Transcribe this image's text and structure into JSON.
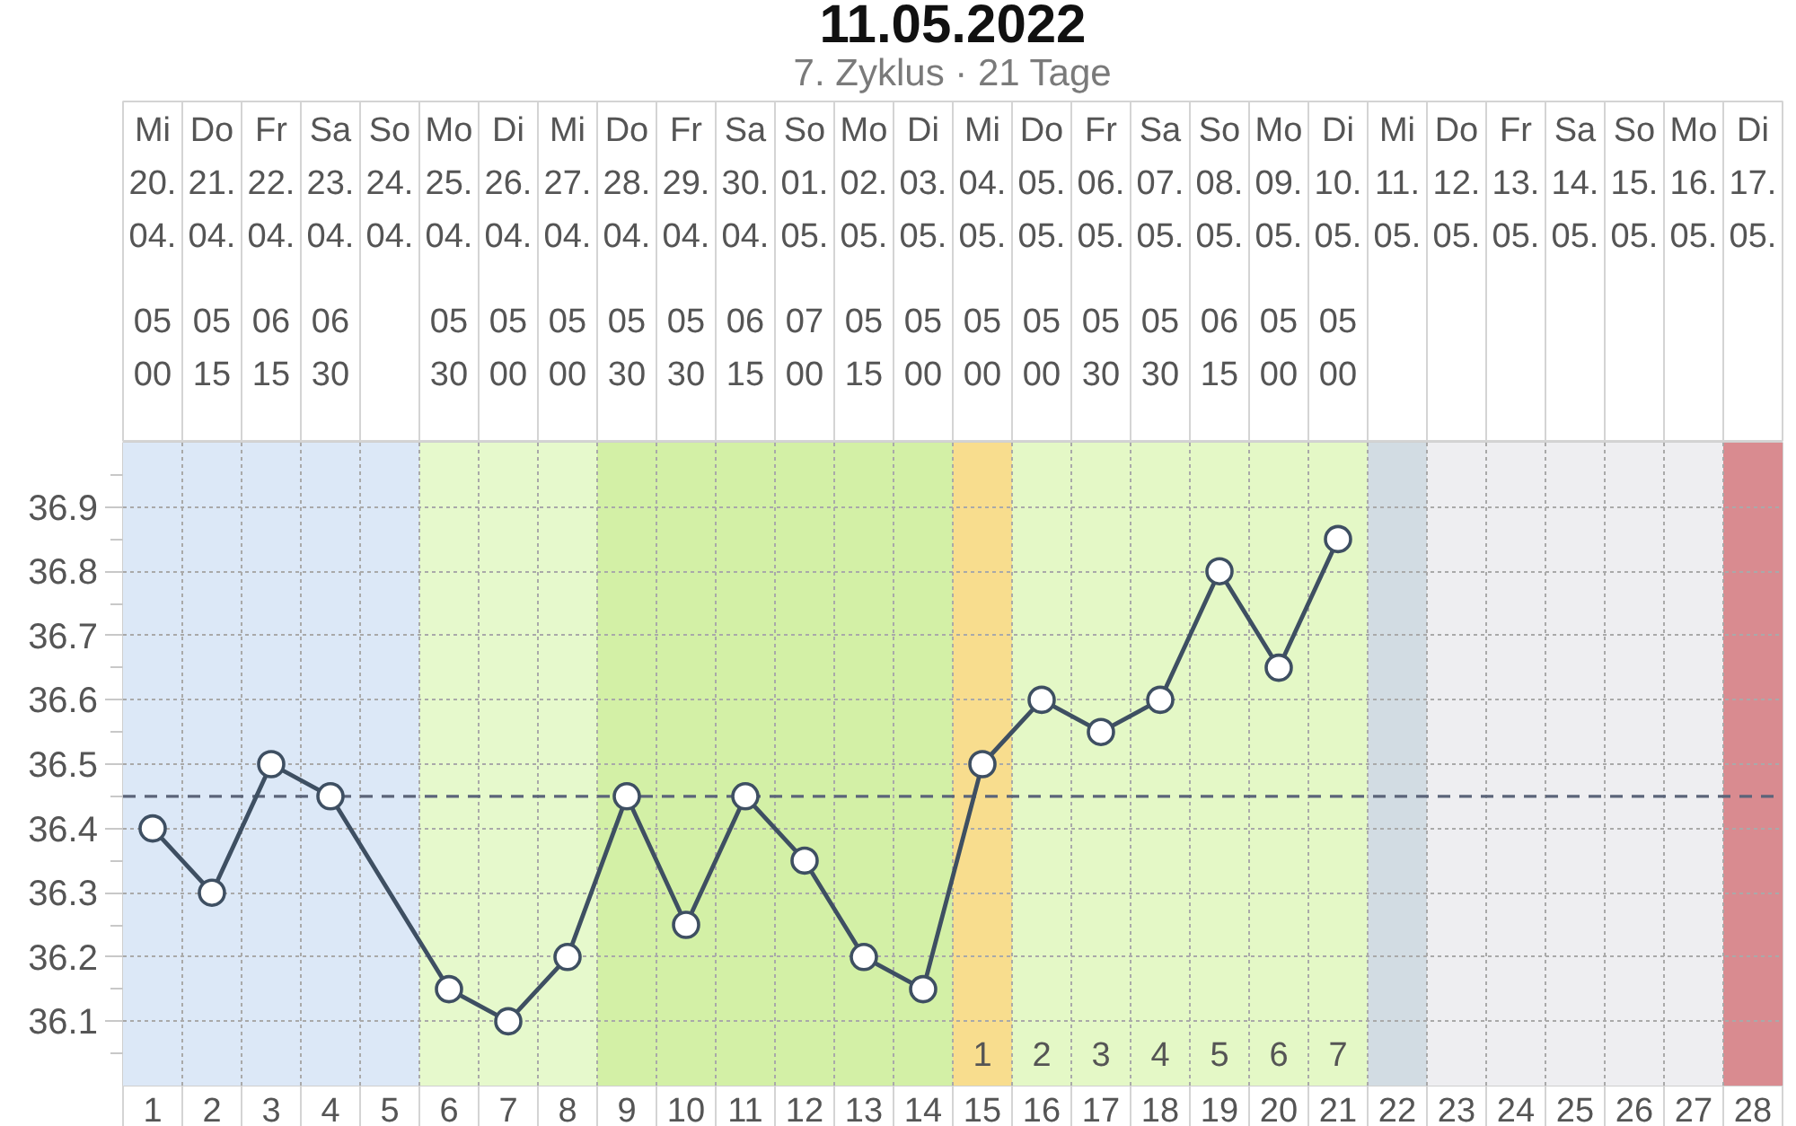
{
  "chart_data": {
    "type": "line",
    "title": "11.05.2022",
    "subtitle": "7. Zyklus · 21 Tage",
    "xlim": [
      0.5,
      28.5
    ],
    "xticks": [
      1,
      2,
      3,
      4,
      5,
      6,
      7,
      8,
      9,
      10,
      11,
      12,
      13,
      14,
      15,
      16,
      17,
      18,
      19,
      20,
      21,
      22,
      23,
      24,
      25,
      26,
      27,
      28,
      {
        "value": 0.5,
        "label": null
      },
      {
        "value": 1.5,
        "label": null
      },
      {
        "value": 2.5,
        "label": null
      },
      {
        "value": 3.5,
        "label": null
      },
      {
        "value": 4.5,
        "label": null
      },
      {
        "value": 5.5,
        "label": null
      },
      {
        "value": 6.5,
        "label": null
      },
      {
        "value": 7.5,
        "label": null
      },
      {
        "value": 8.5,
        "label": null
      },
      {
        "value": 9.5,
        "label": null
      },
      {
        "value": 10.5,
        "label": null
      },
      {
        "value": 11.5,
        "label": null
      },
      {
        "value": 12.5,
        "label": null
      },
      {
        "value": 13.5,
        "label": null
      },
      {
        "value": 14.5,
        "label": null
      },
      {
        "value": 15.5,
        "label": null
      },
      {
        "value": 16.5,
        "label": null
      },
      {
        "value": 17.5,
        "label": null
      },
      {
        "value": 18.5,
        "label": null
      },
      {
        "value": 19.5,
        "label": null
      },
      {
        "value": 20.5,
        "label": null
      },
      {
        "value": 21.5,
        "label": null
      },
      {
        "value": 22.5,
        "label": null
      },
      {
        "value": 23.5,
        "label": null
      },
      {
        "value": 24.5,
        "label": null
      },
      {
        "value": 25.5,
        "label": null
      },
      {
        "value": 26.5,
        "label": null
      },
      {
        "value": 27.5,
        "label": null
      },
      {
        "value": 28.5,
        "label": null
      }
    ],
    "x2lim": [
      "2022-04-19T12:00",
      "2022-05-17T12:00"
    ],
    "x2ticks": [
      {
        "value": "2022-04-20",
        "label": "Mi\n20.\n04."
      },
      {
        "value": "2022-04-21",
        "label": "Do\n21.\n04."
      },
      {
        "value": "2022-04-22",
        "label": "Fr\n22.\n04."
      },
      {
        "value": "2022-04-23",
        "label": "Sa\n23.\n04."
      },
      {
        "value": "2022-04-24",
        "label": "So\n24.\n04."
      },
      {
        "value": "2022-04-25",
        "label": "Mo\n25.\n04."
      },
      {
        "value": "2022-04-26",
        "label": "Di\n26.\n04."
      },
      {
        "value": "2022-04-27",
        "label": "Mi\n27.\n04."
      },
      {
        "value": "2022-04-28",
        "label": "Do\n28.\n04."
      },
      {
        "value": "2022-04-29",
        "label": "Fr\n29.\n04."
      },
      {
        "value": "2022-04-30",
        "label": "Sa\n30.\n04."
      },
      {
        "value": "2022-05-01",
        "label": "So\n01.\n05."
      },
      {
        "value": "2022-05-02",
        "label": "Mo\n02.\n05."
      },
      {
        "value": "2022-05-03",
        "label": "Di\n03.\n05."
      },
      {
        "value": "2022-05-04",
        "label": "Mi\n04.\n05."
      },
      {
        "value": "2022-05-05",
        "label": "Do\n05.\n05."
      },
      {
        "value": "2022-05-06",
        "label": "Fr\n06.\n05."
      },
      {
        "value": "2022-05-07",
        "label": "Sa\n07.\n05."
      },
      {
        "value": "2022-05-08",
        "label": "So\n08.\n05."
      },
      {
        "value": "2022-05-09",
        "label": "Mo\n09.\n05."
      },
      {
        "value": "2022-05-10",
        "label": "Di\n10.\n05."
      },
      {
        "value": "2022-05-11",
        "label": "Mi\n11.\n05."
      },
      {
        "value": "2022-05-12",
        "label": "Do\n12.\n05."
      },
      {
        "value": "2022-05-13",
        "label": "Fr\n13.\n05."
      },
      {
        "value": "2022-05-14",
        "label": "Sa\n14.\n05."
      },
      {
        "value": "2022-05-15",
        "label": "So\n15.\n05."
      },
      {
        "value": "2022-05-16",
        "label": "Mo\n16.\n05."
      },
      {
        "value": "2022-05-17",
        "label": "Di\n17.\n05."
      },
      {
        "value": "2022-04-19T12:00",
        "label": null
      },
      {
        "value": "2022-04-20T12:00",
        "label": null
      },
      {
        "value": "2022-04-21T12:00",
        "label": null
      },
      {
        "value": "2022-04-22T12:00",
        "label": null
      },
      {
        "value": "2022-04-23T12:00",
        "label": null
      },
      {
        "value": "2022-04-24T12:00",
        "label": null
      },
      {
        "value": "2022-04-25T12:00",
        "label": null
      },
      {
        "value": "2022-04-26T12:00",
        "label": null
      },
      {
        "value": "2022-04-27T12:00",
        "label": null
      },
      {
        "value": "2022-04-28T12:00",
        "label": null
      },
      {
        "value": "2022-04-29T12:00",
        "label": null
      },
      {
        "value": "2022-04-30T12:00",
        "label": null
      },
      {
        "value": "2022-05-01T12:00",
        "label": null
      },
      {
        "value": "2022-05-02T12:00",
        "label": null
      },
      {
        "value": "2022-05-03T12:00",
        "label": null
      },
      {
        "value": "2022-05-04T12:00",
        "label": null
      },
      {
        "value": "2022-05-05T12:00",
        "label": null
      },
      {
        "value": "2022-05-06T12:00",
        "label": null
      },
      {
        "value": "2022-05-07T12:00",
        "label": null
      },
      {
        "value": "2022-05-08T12:00",
        "label": null
      },
      {
        "value": "2022-05-09T12:00",
        "label": null
      },
      {
        "value": "2022-05-10T12:00",
        "label": null
      },
      {
        "value": "2022-05-11T12:00",
        "label": null
      },
      {
        "value": "2022-05-12T12:00",
        "label": null
      },
      {
        "value": "2022-05-13T12:00",
        "label": null
      },
      {
        "value": "2022-05-14T12:00",
        "label": null
      },
      {
        "value": "2022-05-15T12:00",
        "label": null
      },
      {
        "value": "2022-05-16T12:00",
        "label": null
      },
      {
        "value": "2022-05-17T12:00",
        "label": null
      }
    ],
    "ylim": [
      36.0,
      37.0
    ],
    "yticks": [
      36.1,
      36.2,
      36.3,
      36.4,
      36.5,
      36.6,
      36.7,
      36.8,
      36.9,
      {
        "value": 36.05,
        "label": null
      },
      {
        "value": 36.15,
        "label": null
      },
      {
        "value": 36.25,
        "label": null
      },
      {
        "value": 36.35,
        "label": null
      },
      {
        "value": 36.45,
        "label": null
      },
      {
        "value": 36.55,
        "label": null
      },
      {
        "value": 36.65,
        "label": null
      },
      {
        "value": 36.75,
        "label": null
      },
      {
        "value": 36.85,
        "label": null
      },
      {
        "value": 36.95,
        "label": null
      }
    ],
    "grid": true,
    "marker": "circle",
    "series": [
      {
        "color": "#3e4f62",
        "x": [
          1,
          2,
          3,
          4,
          6,
          7,
          8,
          9,
          10,
          11,
          12,
          13,
          14,
          15,
          16,
          17,
          18,
          19,
          20,
          21
        ],
        "values": [
          36.4,
          36.3,
          36.5,
          36.45,
          36.15,
          36.1,
          36.2,
          36.45,
          36.25,
          36.45,
          36.35,
          36.2,
          36.15,
          36.5,
          36.6,
          36.55,
          36.6,
          36.8,
          36.65,
          36.85
        ]
      }
    ],
    "ref_lines": [
      {
        "axis": "y",
        "value": 36.45,
        "line_style": "dashed",
        "color": "#5b6479"
      }
    ],
    "bands": [
      {
        "axis": "x",
        "from": 0.5,
        "to": 5.5,
        "color": "#dce8f7"
      },
      {
        "axis": "x",
        "from": 5.5,
        "to": 8.5,
        "color": "#e6f9cc"
      },
      {
        "axis": "x",
        "from": 8.5,
        "to": 14.5,
        "color": "#d3f0a6"
      },
      {
        "axis": "x",
        "from": 14.5,
        "to": 15.5,
        "color": "#f8dd8e",
        "label": "1"
      },
      {
        "axis": "x",
        "from": 15.5,
        "to": 16.5,
        "color": "#e4f8c6",
        "label": "2"
      },
      {
        "axis": "x",
        "from": 16.5,
        "to": 17.5,
        "color": "#e4f8c6",
        "label": "3"
      },
      {
        "axis": "x",
        "from": 17.5,
        "to": 18.5,
        "color": "#e4f8c6",
        "label": "4"
      },
      {
        "axis": "x",
        "from": 18.5,
        "to": 19.5,
        "color": "#e4f8c6",
        "label": "5"
      },
      {
        "axis": "x",
        "from": 19.5,
        "to": 20.5,
        "color": "#e4f8c6",
        "label": "6"
      },
      {
        "axis": "x",
        "from": 20.5,
        "to": 21.5,
        "color": "#e4f8c6",
        "label": "7"
      },
      {
        "axis": "x",
        "from": 21.5,
        "to": 22.5,
        "color": "#d2dce3"
      },
      {
        "axis": "x",
        "from": 22.5,
        "to": 27.5,
        "color": "#eeeef1"
      },
      {
        "axis": "x",
        "from": 27.5,
        "to": 28.5,
        "color": "#d98b90"
      }
    ],
    "annotations": [
      "05\n00",
      "05\n15",
      "06\n15",
      "06\n30",
      "05\n30",
      "05\n00",
      "05\n00",
      "05\n30",
      "05\n30",
      "06\n15",
      "07\n00",
      "05\n15",
      "05\n00",
      "05\n00",
      "05\n00",
      "05\n30",
      "05\n30",
      "06\n15",
      "05\n00",
      "05\n00"
    ]
  }
}
